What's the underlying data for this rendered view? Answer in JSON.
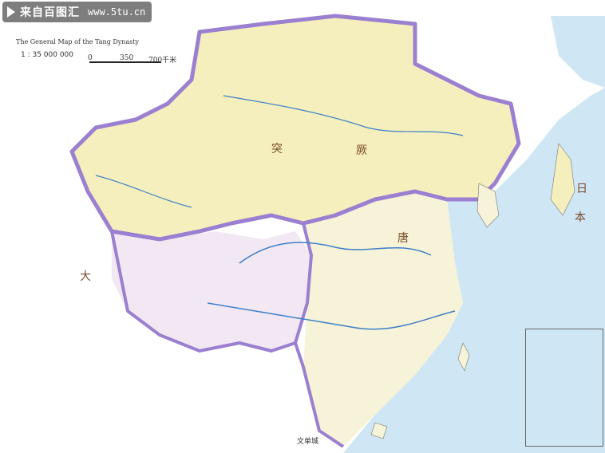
{
  "map": {
    "colors": {
      "sea": "#cfe7f4",
      "land": "#ffffff",
      "tang_core": "#f7f3d8",
      "steppe": "#f5efbe",
      "tibet": "#f2e8f3",
      "border_purple": "#9b7fd0",
      "river": "#3d7fc8"
    }
  },
  "watermark": {
    "site_cn": "来自百图汇",
    "site_url": "www.5tu.cn"
  },
  "legend": {
    "title_en": "The General Map of the Tang Dynasty",
    "scale_ratio": "1 : 35 000 000",
    "scale_ticks": [
      "0",
      "350",
      "700千米"
    ],
    "items": []
  },
  "labels": {
    "regions": [
      {
        "text": "突"
      },
      {
        "text": "厥"
      },
      {
        "text": "大"
      },
      {
        "text": "唐"
      },
      {
        "text": "日"
      },
      {
        "text": "本"
      }
    ],
    "seas": [],
    "cities": [
      {
        "text": "文单城"
      }
    ]
  },
  "inset": {
    "title": ""
  }
}
